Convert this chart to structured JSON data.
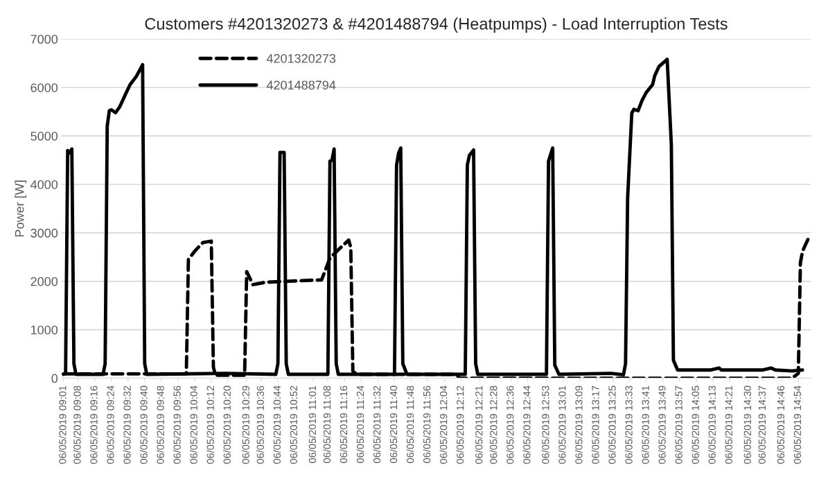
{
  "chart_data": {
    "type": "line",
    "title": "Customers #4201320273 & #4201488794 (Heatpumps) - Load Interruption Tests",
    "ylabel": "Power [W]",
    "series": [
      {
        "name": "4201320273",
        "color": "#000000",
        "line_style": "dashed",
        "x": [
          "2019-05-06T09:01",
          "2019-05-06T10:00",
          "2019-05-06T10:01",
          "2019-05-06T10:04",
          "2019-05-06T10:08",
          "2019-05-06T10:12",
          "2019-05-06T10:13",
          "2019-05-06T10:14",
          "2019-05-06T10:28",
          "2019-05-06T10:29",
          "2019-05-06T10:32",
          "2019-05-06T10:38",
          "2019-05-06T10:48",
          "2019-05-06T11:05",
          "2019-05-06T11:09",
          "2019-05-06T11:14",
          "2019-05-06T11:18",
          "2019-05-06T11:19",
          "2019-05-06T11:20",
          "2019-05-06T11:22",
          "2019-05-06T12:10",
          "2019-05-06T12:11",
          "2019-05-06T14:51",
          "2019-05-06T14:54",
          "2019-05-06T14:55",
          "2019-05-06T14:56",
          "2019-05-06T14:59"
        ],
        "values": [
          90,
          90,
          2450,
          2620,
          2800,
          2830,
          230,
          60,
          60,
          2200,
          1930,
          1980,
          2000,
          2030,
          2480,
          2690,
          2850,
          2700,
          140,
          80,
          80,
          0,
          0,
          100,
          2380,
          2620,
          2900
        ]
      },
      {
        "name": "4201488794",
        "color": "#000000",
        "line_style": "solid",
        "x": [
          "2019-05-06T09:01",
          "2019-05-06T09:02",
          "2019-05-06T09:03",
          "2019-05-06T09:04",
          "2019-05-06T09:05",
          "2019-05-06T09:06",
          "2019-05-06T09:07",
          "2019-05-06T09:20",
          "2019-05-06T09:21",
          "2019-05-06T09:22",
          "2019-05-06T09:23",
          "2019-05-06T09:24",
          "2019-05-06T09:26",
          "2019-05-06T09:28",
          "2019-05-06T09:31",
          "2019-05-06T09:33",
          "2019-05-06T09:36",
          "2019-05-06T09:39",
          "2019-05-06T09:40",
          "2019-05-06T09:41",
          "2019-05-06T10:19",
          "2019-05-06T10:43",
          "2019-05-06T10:44",
          "2019-05-06T10:45",
          "2019-05-06T10:47",
          "2019-05-06T10:48",
          "2019-05-06T10:49",
          "2019-05-06T11:08",
          "2019-05-06T11:09",
          "2019-05-06T11:10",
          "2019-05-06T11:11",
          "2019-05-06T11:12",
          "2019-05-06T11:13",
          "2019-05-06T11:40",
          "2019-05-06T11:41",
          "2019-05-06T11:42",
          "2019-05-06T11:43",
          "2019-05-06T11:44",
          "2019-05-06T11:46",
          "2019-05-06T12:14",
          "2019-05-06T12:15",
          "2019-05-06T12:16",
          "2019-05-06T12:18",
          "2019-05-06T12:19",
          "2019-05-06T12:20",
          "2019-05-06T12:53",
          "2019-05-06T12:54",
          "2019-05-06T12:56",
          "2019-05-06T12:57",
          "2019-05-06T12:59",
          "2019-05-06T13:24",
          "2019-05-06T13:30",
          "2019-05-06T13:31",
          "2019-05-06T13:32",
          "2019-05-06T13:34",
          "2019-05-06T13:35",
          "2019-05-06T13:37",
          "2019-05-06T13:39",
          "2019-05-06T13:41",
          "2019-05-06T13:44",
          "2019-05-06T13:45",
          "2019-05-06T13:47",
          "2019-05-06T13:51",
          "2019-05-06T13:53",
          "2019-05-06T13:54",
          "2019-05-06T13:56",
          "2019-05-06T14:12",
          "2019-05-06T14:16",
          "2019-05-06T14:17",
          "2019-05-06T14:37",
          "2019-05-06T14:41",
          "2019-05-06T14:43",
          "2019-05-06T14:51",
          "2019-05-06T14:56"
        ],
        "values": [
          80,
          100,
          4700,
          4650,
          4730,
          300,
          80,
          80,
          300,
          5200,
          5520,
          5540,
          5480,
          5600,
          5880,
          6060,
          6230,
          6470,
          300,
          80,
          100,
          80,
          300,
          4660,
          4660,
          300,
          80,
          80,
          4480,
          4500,
          4730,
          300,
          80,
          80,
          4400,
          4650,
          4750,
          300,
          80,
          80,
          4400,
          4600,
          4710,
          300,
          80,
          80,
          4480,
          4750,
          270,
          80,
          100,
          70,
          300,
          3720,
          5470,
          5550,
          5520,
          5740,
          5900,
          6060,
          6240,
          6430,
          6580,
          4820,
          370,
          170,
          170,
          210,
          170,
          170,
          210,
          170,
          150,
          170
        ]
      }
    ],
    "xlim": [
      "2019-05-06T09:00",
      "2019-05-06T15:00"
    ],
    "xticks": [
      {
        "value": "2019-05-06T09:01",
        "label": "06/05/2019 09:01"
      },
      {
        "value": "2019-05-06T09:08",
        "label": "06/05/2019 09:08"
      },
      {
        "value": "2019-05-06T09:16",
        "label": "06/05/2019 09:16"
      },
      {
        "value": "2019-05-06T09:24",
        "label": "06/05/2019 09:24"
      },
      {
        "value": "2019-05-06T09:32",
        "label": "06/05/2019 09:32"
      },
      {
        "value": "2019-05-06T09:40",
        "label": "06/05/2019 09:40"
      },
      {
        "value": "2019-05-06T09:48",
        "label": "06/05/2019 09:48"
      },
      {
        "value": "2019-05-06T09:56",
        "label": "06/05/2019 09:56"
      },
      {
        "value": "2019-05-06T10:04",
        "label": "06/05/2019 10:04"
      },
      {
        "value": "2019-05-06T10:12",
        "label": "06/05/2019 10:12"
      },
      {
        "value": "2019-05-06T10:20",
        "label": "06/05/2019 10:20"
      },
      {
        "value": "2019-05-06T10:29",
        "label": "06/05/2019 10:29"
      },
      {
        "value": "2019-05-06T10:36",
        "label": "06/05/2019 10:36"
      },
      {
        "value": "2019-05-06T10:44",
        "label": "06/05/2019 10:44"
      },
      {
        "value": "2019-05-06T10:52",
        "label": "06/05/2019 10:52"
      },
      {
        "value": "2019-05-06T11:01",
        "label": "06/05/2019 11:01"
      },
      {
        "value": "2019-05-06T11:08",
        "label": "06/05/2019 11:08"
      },
      {
        "value": "2019-05-06T11:16",
        "label": "06/05/2019 11:16"
      },
      {
        "value": "2019-05-06T11:24",
        "label": "06/05/2019 11:24"
      },
      {
        "value": "2019-05-06T11:32",
        "label": "06/05/2019 11:32"
      },
      {
        "value": "2019-05-06T11:40",
        "label": "06/05/2019 11:40"
      },
      {
        "value": "2019-05-06T11:48",
        "label": "06/05/2019 11:48"
      },
      {
        "value": "2019-05-06T11:56",
        "label": "06/05/2019 11:56"
      },
      {
        "value": "2019-05-06T12:04",
        "label": "06/05/2019 12:04"
      },
      {
        "value": "2019-05-06T12:12",
        "label": "06/05/2019 12:12"
      },
      {
        "value": "2019-05-06T12:21",
        "label": "06/05/2019 12:21"
      },
      {
        "value": "2019-05-06T12:28",
        "label": "06/05/2019 12:28"
      },
      {
        "value": "2019-05-06T12:36",
        "label": "06/05/2019 12:36"
      },
      {
        "value": "2019-05-06T12:44",
        "label": "06/05/2019 12:44"
      },
      {
        "value": "2019-05-06T12:53",
        "label": "06/05/2019 12:53"
      },
      {
        "value": "2019-05-06T13:01",
        "label": "06/05/2019 13:01"
      },
      {
        "value": "2019-05-06T13:09",
        "label": "06/05/2019 13:09"
      },
      {
        "value": "2019-05-06T13:17",
        "label": "06/05/2019 13:17"
      },
      {
        "value": "2019-05-06T13:25",
        "label": "06/05/2019 13:25"
      },
      {
        "value": "2019-05-06T13:33",
        "label": "06/05/2019 13:33"
      },
      {
        "value": "2019-05-06T13:41",
        "label": "06/05/2019 13:41"
      },
      {
        "value": "2019-05-06T13:49",
        "label": "06/05/2019 13:49"
      },
      {
        "value": "2019-05-06T13:57",
        "label": "06/05/2019 13:57"
      },
      {
        "value": "2019-05-06T14:05",
        "label": "06/05/2019 14:05"
      },
      {
        "value": "2019-05-06T14:13",
        "label": "06/05/2019 14:13"
      },
      {
        "value": "2019-05-06T14:21",
        "label": "06/05/2019 14:21"
      },
      {
        "value": "2019-05-06T14:30",
        "label": "06/05/2019 14:30"
      },
      {
        "value": "2019-05-06T14:37",
        "label": "06/05/2019 14:37"
      },
      {
        "value": "2019-05-06T14:46",
        "label": "06/05/2019 14:46"
      },
      {
        "value": "2019-05-06T14:54",
        "label": "06/05/2019 14:54"
      }
    ],
    "ylim": [
      0,
      7000
    ],
    "yticks": [
      0,
      1000,
      2000,
      3000,
      4000,
      5000,
      6000,
      7000
    ],
    "grid": "y",
    "legend": "top left"
  }
}
